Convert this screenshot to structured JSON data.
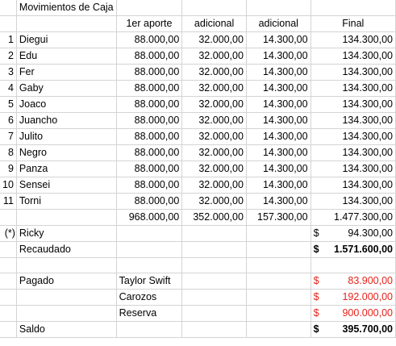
{
  "title": "Movimientos de Caja",
  "headers": [
    "1er aporte",
    "adicional",
    "adicional",
    "Final"
  ],
  "rows": [
    {
      "num": "1",
      "name": "Diegui",
      "a": "88.000,00",
      "b": "32.000,00",
      "c": "14.300,00",
      "f": "134.300,00"
    },
    {
      "num": "2",
      "name": "Edu",
      "a": "88.000,00",
      "b": "32.000,00",
      "c": "14.300,00",
      "f": "134.300,00"
    },
    {
      "num": "3",
      "name": "Fer",
      "a": "88.000,00",
      "b": "32.000,00",
      "c": "14.300,00",
      "f": "134.300,00"
    },
    {
      "num": "4",
      "name": "Gaby",
      "a": "88.000,00",
      "b": "32.000,00",
      "c": "14.300,00",
      "f": "134.300,00"
    },
    {
      "num": "5",
      "name": "Joaco",
      "a": "88.000,00",
      "b": "32.000,00",
      "c": "14.300,00",
      "f": "134.300,00"
    },
    {
      "num": "6",
      "name": "Juancho",
      "a": "88.000,00",
      "b": "32.000,00",
      "c": "14.300,00",
      "f": "134.300,00"
    },
    {
      "num": "7",
      "name": "Julito",
      "a": "88.000,00",
      "b": "32.000,00",
      "c": "14.300,00",
      "f": "134.300,00"
    },
    {
      "num": "8",
      "name": "Negro",
      "a": "88.000,00",
      "b": "32.000,00",
      "c": "14.300,00",
      "f": "134.300,00"
    },
    {
      "num": "9",
      "name": "Panza",
      "a": "88.000,00",
      "b": "32.000,00",
      "c": "14.300,00",
      "f": "134.300,00"
    },
    {
      "num": "10",
      "name": "Sensei",
      "a": "88.000,00",
      "b": "32.000,00",
      "c": "14.300,00",
      "f": "134.300,00"
    },
    {
      "num": "11",
      "name": "Torni",
      "a": "88.000,00",
      "b": "32.000,00",
      "c": "14.300,00",
      "f": "134.300,00"
    }
  ],
  "totals": {
    "a": "968.000,00",
    "b": "352.000,00",
    "c": "157.300,00",
    "f": "1.477.300,00"
  },
  "ricky": {
    "mark": "(*)",
    "name": "Ricky",
    "currency": "$",
    "value": "94.300,00"
  },
  "recaudado": {
    "label": "Recaudado",
    "currency": "$",
    "value": "1.571.600,00"
  },
  "pagado": {
    "label": "Pagado",
    "items": [
      {
        "name": "Taylor Swift",
        "currency": "$",
        "value": "83.900,00"
      },
      {
        "name": "Carozos",
        "currency": "$",
        "value": "192.000,00"
      },
      {
        "name": "Reserva",
        "currency": "$",
        "value": "900.000,00"
      }
    ]
  },
  "saldo": {
    "label": "Saldo",
    "currency": "$",
    "value": "395.700,00"
  },
  "colors": {
    "negative": "#e8211a",
    "gridline": "#d4d4d4"
  }
}
